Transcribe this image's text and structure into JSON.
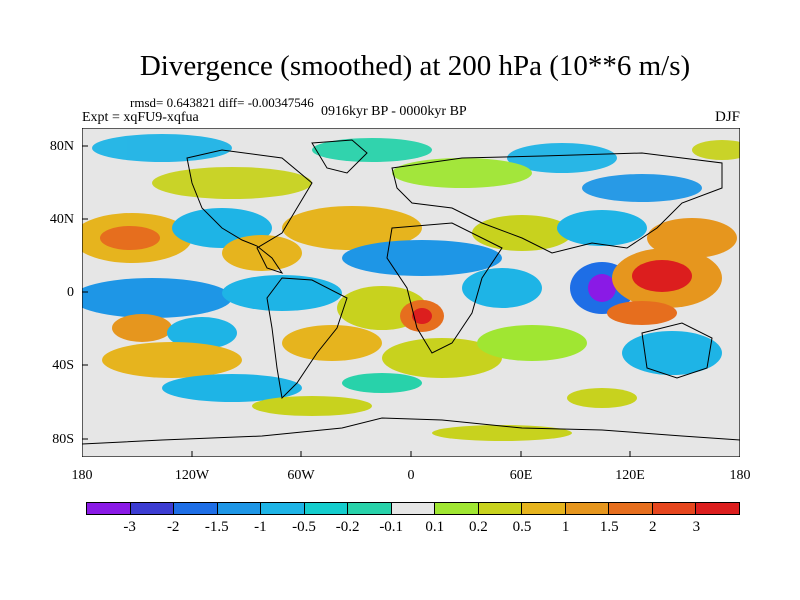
{
  "title": "Divergence (smoothed) at 200 hPa (10**6 m/s)",
  "stats": "rmsd= 0.643821 diff= -0.00347546",
  "experiment": "Expt = xqFU9-xqfua",
  "period": "0916kyr BP - 0000kyr BP",
  "season": "DJF",
  "map": {
    "lat_labels": [
      "80N",
      "40N",
      "0",
      "40S",
      "80S"
    ],
    "lon_labels": [
      "180",
      "120W",
      "60W",
      "0",
      "60E",
      "120E",
      "180"
    ],
    "background_color": "#e6e6e6"
  },
  "colorbar": {
    "labels": [
      "-3",
      "-2",
      "-1.5",
      "-1",
      "-0.5",
      "-0.2",
      "-0.1",
      "0.1",
      "0.2",
      "0.5",
      "1",
      "1.5",
      "2",
      "3"
    ],
    "colors": [
      "#8a1ae6",
      "#3c3cd2",
      "#1e6ee6",
      "#1e96e6",
      "#1eb4e6",
      "#14cdcd",
      "#28d2aa",
      "#e6e6e6",
      "#a0e632",
      "#c8d21e",
      "#e6b41e",
      "#e6961e",
      "#e66e1e",
      "#e6461e",
      "#dc1e1e"
    ]
  }
}
